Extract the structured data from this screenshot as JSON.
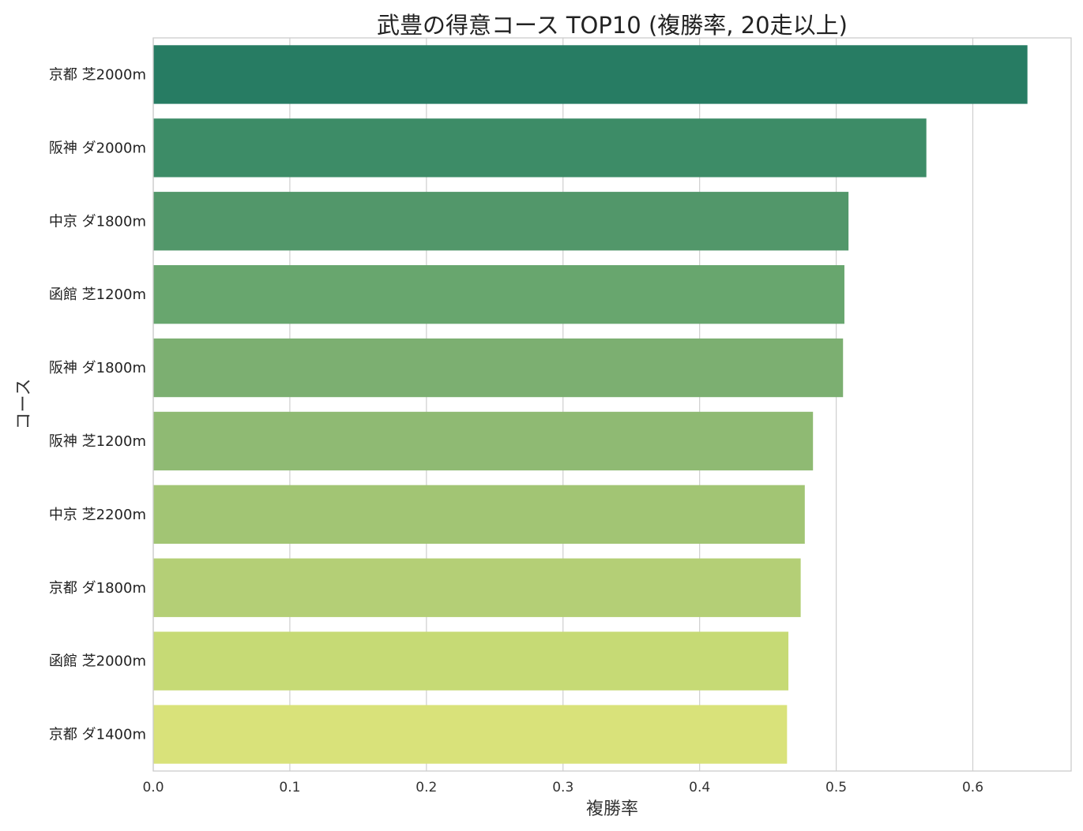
{
  "chart_data": {
    "type": "bar",
    "orientation": "horizontal",
    "title": "武豊の得意コース TOP10 (複勝率, 20走以上)",
    "xlabel": "複勝率",
    "ylabel": "コース",
    "xlim": [
      0,
      0.672
    ],
    "xticks": [
      "0.0",
      "0.1",
      "0.2",
      "0.3",
      "0.4",
      "0.5",
      "0.6"
    ],
    "grid": true,
    "categories": [
      "京都 芝2000m",
      "阪神 ダ2000m",
      "中京 ダ1800m",
      "函館 芝1200m",
      "阪神 ダ1800m",
      "阪神 芝1200m",
      "中京 芝2200m",
      "京都 ダ1800m",
      "函館 芝2000m",
      "京都 ダ1400m"
    ],
    "values": [
      0.64,
      0.566,
      0.509,
      0.506,
      0.505,
      0.483,
      0.477,
      0.474,
      0.465,
      0.464
    ],
    "colors": [
      "#277c63",
      "#3d8c67",
      "#52976a",
      "#68a66e",
      "#7caf71",
      "#8fba73",
      "#a2c574",
      "#b4cf76",
      "#c6da75",
      "#d9e27a"
    ]
  }
}
